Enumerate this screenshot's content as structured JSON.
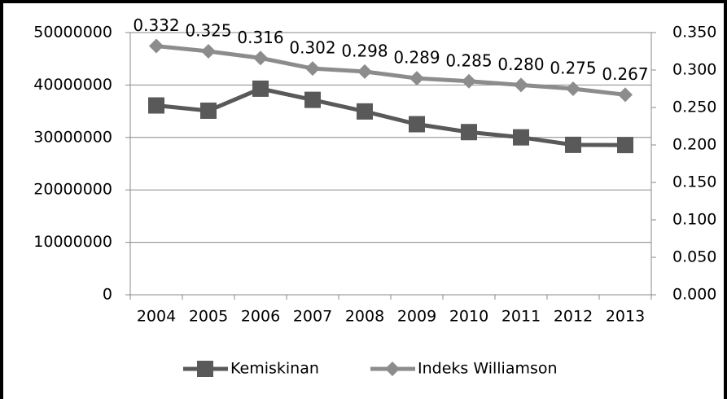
{
  "chart_data": {
    "type": "line",
    "categories": [
      "2004",
      "2005",
      "2006",
      "2007",
      "2008",
      "2009",
      "2010",
      "2011",
      "2012",
      "2013"
    ],
    "series": [
      {
        "name": "Kemiskinan",
        "color": "#595959",
        "marker": "square",
        "values": [
          36100000,
          35100000,
          39300000,
          37170000,
          34960000,
          32530000,
          31020000,
          30020000,
          28590000,
          28550000
        ]
      },
      {
        "name": "Indeks Williamson",
        "color": "#8c8c8c",
        "marker": "diamond",
        "axis": "y2",
        "values": [
          0.332,
          0.325,
          0.316,
          0.302,
          0.298,
          0.289,
          0.285,
          0.28,
          0.275,
          0.267
        ],
        "value_labels": [
          "0.332",
          "0.325",
          "0.316",
          "0.302",
          "0.298",
          "0.289",
          "0.285",
          "0.280",
          "0.275",
          "0.267"
        ]
      }
    ],
    "ylim": [
      0,
      50000000
    ],
    "yticks": [
      0,
      10000000,
      20000000,
      30000000,
      40000000,
      50000000
    ],
    "y2lim": [
      0,
      0.35
    ],
    "y2ticks": [
      {
        "value": 0,
        "label": "0.000"
      },
      {
        "value": 0.05,
        "label": "0.050"
      },
      {
        "value": 0.1,
        "label": "0.100"
      },
      {
        "value": 0.15,
        "label": "0.150"
      },
      {
        "value": 0.2,
        "label": "0.200"
      },
      {
        "value": 0.25,
        "label": "0.250"
      },
      {
        "value": 0.3,
        "label": "0.300"
      },
      {
        "value": 0.35,
        "label": "0.350"
      }
    ],
    "grid": true,
    "legend": "bottom"
  }
}
